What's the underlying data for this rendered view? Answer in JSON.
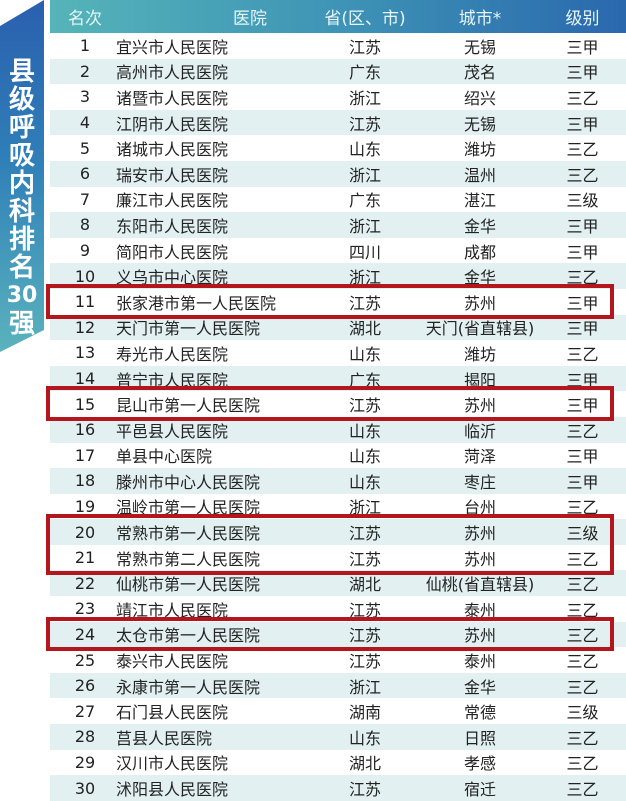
{
  "banner": {
    "title_chars": [
      "县",
      "级",
      "呼",
      "吸",
      "内",
      "科",
      "排",
      "名",
      "30",
      "强"
    ]
  },
  "header": {
    "rank": "名次",
    "hospital": "医院",
    "province": "省(区、市)",
    "city": "城市*",
    "level": "级别"
  },
  "highlight_color": "#b3161c",
  "highlighted_ranks": [
    [
      11
    ],
    [
      15
    ],
    [
      20,
      21
    ],
    [
      24
    ]
  ],
  "rows": [
    {
      "rank": "1",
      "hospital": "宜兴市人民医院",
      "province": "江苏",
      "city": "无锡",
      "level": "三甲"
    },
    {
      "rank": "2",
      "hospital": "高州市人民医院",
      "province": "广东",
      "city": "茂名",
      "level": "三甲"
    },
    {
      "rank": "3",
      "hospital": "诸暨市人民医院",
      "province": "浙江",
      "city": "绍兴",
      "level": "三乙"
    },
    {
      "rank": "4",
      "hospital": "江阴市人民医院",
      "province": "江苏",
      "city": "无锡",
      "level": "三甲"
    },
    {
      "rank": "5",
      "hospital": "诸城市人民医院",
      "province": "山东",
      "city": "潍坊",
      "level": "三乙"
    },
    {
      "rank": "6",
      "hospital": "瑞安市人民医院",
      "province": "浙江",
      "city": "温州",
      "level": "三乙"
    },
    {
      "rank": "7",
      "hospital": "廉江市人民医院",
      "province": "广东",
      "city": "湛江",
      "level": "三级"
    },
    {
      "rank": "8",
      "hospital": "东阳市人民医院",
      "province": "浙江",
      "city": "金华",
      "level": "三甲"
    },
    {
      "rank": "9",
      "hospital": "简阳市人民医院",
      "province": "四川",
      "city": "成都",
      "level": "三甲"
    },
    {
      "rank": "10",
      "hospital": "义乌市中心医院",
      "province": "浙江",
      "city": "金华",
      "level": "三乙"
    },
    {
      "rank": "11",
      "hospital": "张家港市第一人民医院",
      "province": "江苏",
      "city": "苏州",
      "level": "三甲"
    },
    {
      "rank": "12",
      "hospital": "天门市第一人民医院",
      "province": "湖北",
      "city": "天门(省直辖县)",
      "level": "三甲"
    },
    {
      "rank": "13",
      "hospital": "寿光市人民医院",
      "province": "山东",
      "city": "潍坊",
      "level": "三乙"
    },
    {
      "rank": "14",
      "hospital": "普宁市人民医院",
      "province": "广东",
      "city": "揭阳",
      "level": "三甲"
    },
    {
      "rank": "15",
      "hospital": "昆山市第一人民医院",
      "province": "江苏",
      "city": "苏州",
      "level": "三甲"
    },
    {
      "rank": "16",
      "hospital": "平邑县人民医院",
      "province": "山东",
      "city": "临沂",
      "level": "三乙"
    },
    {
      "rank": "17",
      "hospital": "单县中心医院",
      "province": "山东",
      "city": "菏泽",
      "level": "三甲"
    },
    {
      "rank": "18",
      "hospital": "滕州市中心人民医院",
      "province": "山东",
      "city": "枣庄",
      "level": "三甲"
    },
    {
      "rank": "19",
      "hospital": "温岭市第一人民医院",
      "province": "浙江",
      "city": "台州",
      "level": "三乙"
    },
    {
      "rank": "20",
      "hospital": "常熟市第一人民医院",
      "province": "江苏",
      "city": "苏州",
      "level": "三级"
    },
    {
      "rank": "21",
      "hospital": "常熟市第二人民医院",
      "province": "江苏",
      "city": "苏州",
      "level": "三乙"
    },
    {
      "rank": "22",
      "hospital": "仙桃市第一人民医院",
      "province": "湖北",
      "city": "仙桃(省直辖县)",
      "level": "三乙"
    },
    {
      "rank": "23",
      "hospital": "靖江市人民医院",
      "province": "江苏",
      "city": "泰州",
      "level": "三乙"
    },
    {
      "rank": "24",
      "hospital": "太仓市第一人民医院",
      "province": "江苏",
      "city": "苏州",
      "level": "三乙"
    },
    {
      "rank": "25",
      "hospital": "泰兴市人民医院",
      "province": "江苏",
      "city": "泰州",
      "level": "三乙"
    },
    {
      "rank": "26",
      "hospital": "永康市第一人民医院",
      "province": "浙江",
      "city": "金华",
      "level": "三乙"
    },
    {
      "rank": "27",
      "hospital": "石门县人民医院",
      "province": "湖南",
      "city": "常德",
      "level": "三级"
    },
    {
      "rank": "28",
      "hospital": "莒县人民医院",
      "province": "山东",
      "city": "日照",
      "level": "三乙"
    },
    {
      "rank": "29",
      "hospital": "汉川市人民医院",
      "province": "湖北",
      "city": "孝感",
      "level": "三乙"
    },
    {
      "rank": "30",
      "hospital": "沭阳县人民医院",
      "province": "江苏",
      "city": "宿迁",
      "level": "三乙"
    }
  ]
}
